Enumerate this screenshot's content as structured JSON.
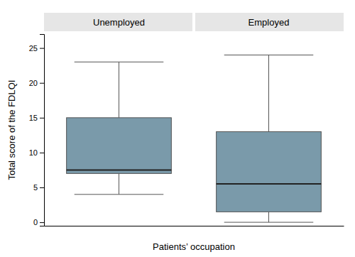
{
  "chart_data": {
    "type": "box",
    "x_label": "Patients’ occupation",
    "y_label": "Total score of the FDLQI",
    "categories": [
      "Unemployed",
      "Employed"
    ],
    "whisker_low": [
      4,
      0
    ],
    "q1": [
      7,
      1.5
    ],
    "median": [
      7.5,
      5.5
    ],
    "q3": [
      15,
      13
    ],
    "whisker_high": [
      23,
      24
    ],
    "ylim": [
      -0.5,
      27
    ],
    "yticks": [
      0,
      5,
      10,
      15,
      20,
      25
    ],
    "color": "#7a9aaa"
  }
}
